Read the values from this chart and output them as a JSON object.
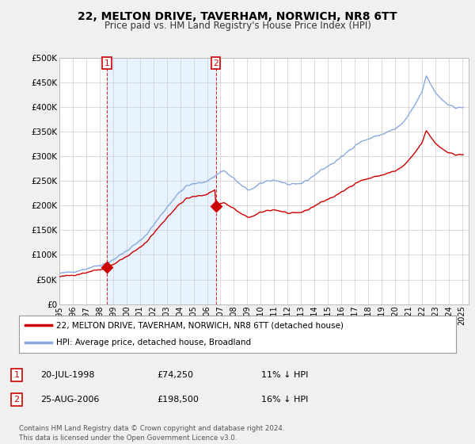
{
  "title": "22, MELTON DRIVE, TAVERHAM, NORWICH, NR8 6TT",
  "subtitle": "Price paid vs. HM Land Registry's House Price Index (HPI)",
  "legend_line1": "22, MELTON DRIVE, TAVERHAM, NORWICH, NR8 6TT (detached house)",
  "legend_line2": "HPI: Average price, detached house, Broadland",
  "note1_date": "20-JUL-1998",
  "note1_price": "£74,250",
  "note1_hpi": "11% ↓ HPI",
  "note2_date": "25-AUG-2006",
  "note2_price": "£198,500",
  "note2_hpi": "16% ↓ HPI",
  "footer": "Contains HM Land Registry data © Crown copyright and database right 2024.\nThis data is licensed under the Open Government Licence v3.0.",
  "price_color": "#cc0000",
  "hpi_color": "#88aadd",
  "shade_color": "#ddeeff",
  "background_color": "#f0f0f0",
  "plot_bg_color": "#ffffff",
  "marker1_year": 1998.55,
  "marker1_value": 74250,
  "marker2_year": 2006.65,
  "marker2_value": 198500,
  "ylim_min": 0,
  "ylim_max": 500000,
  "ytick_step": 50000,
  "title_fontsize": 10,
  "subtitle_fontsize": 8.5,
  "axis_fontsize": 7.5
}
